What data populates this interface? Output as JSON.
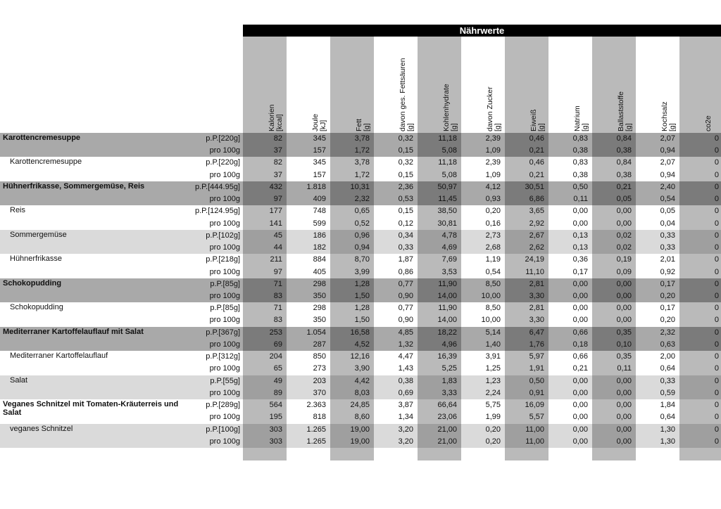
{
  "header": {
    "title": "Nährwerte"
  },
  "columns": [
    {
      "name": "Kalorien",
      "unit": "[kcal]"
    },
    {
      "name": "Joule",
      "unit": "[kJ]"
    },
    {
      "name": "Fett",
      "unit": "[g]"
    },
    {
      "name": "davon ges. Fettsäuren",
      "unit": "[g]"
    },
    {
      "name": "Kohlenhydrate",
      "unit": "[g]"
    },
    {
      "name": "davon Zucker",
      "unit": "[g]"
    },
    {
      "name": "Eiweiß",
      "unit": "[g]"
    },
    {
      "name": "Natrium",
      "unit": "[g]"
    },
    {
      "name": "Ballaststoffe",
      "unit": "[g]"
    },
    {
      "name": "Kochsalz",
      "unit": "[g]"
    },
    {
      "name": "co2e"
    }
  ],
  "items": [
    {
      "name": "Karottencremesuppe",
      "bold": true,
      "shade": "dark",
      "rows": [
        {
          "portion": "p.P.[220g]",
          "values": [
            "82",
            "345",
            "3,78",
            "0,32",
            "11,18",
            "2,39",
            "0,46",
            "0,83",
            "0,84",
            "2,07",
            "0"
          ]
        },
        {
          "portion": "pro 100g",
          "values": [
            "37",
            "157",
            "1,72",
            "0,15",
            "5,08",
            "1,09",
            "0,21",
            "0,38",
            "0,38",
            "0,94",
            "0"
          ]
        }
      ]
    },
    {
      "name": "Karottencremesuppe",
      "bold": false,
      "shade": "white",
      "rows": [
        {
          "portion": "p.P.[220g]",
          "values": [
            "82",
            "345",
            "3,78",
            "0,32",
            "11,18",
            "2,39",
            "0,46",
            "0,83",
            "0,84",
            "2,07",
            "0"
          ]
        },
        {
          "portion": "pro 100g",
          "values": [
            "37",
            "157",
            "1,72",
            "0,15",
            "5,08",
            "1,09",
            "0,21",
            "0,38",
            "0,38",
            "0,94",
            "0"
          ]
        }
      ]
    },
    {
      "name": "Hühnerfrikasse, Sommergemüse, Reis",
      "bold": true,
      "shade": "dark",
      "rows": [
        {
          "portion": "p.P.[444.95g]",
          "values": [
            "432",
            "1.818",
            "10,31",
            "2,36",
            "50,97",
            "4,12",
            "30,51",
            "0,50",
            "0,21",
            "2,40",
            "0"
          ]
        },
        {
          "portion": "pro 100g",
          "values": [
            "97",
            "409",
            "2,32",
            "0,53",
            "11,45",
            "0,93",
            "6,86",
            "0,11",
            "0,05",
            "0,54",
            "0"
          ]
        }
      ]
    },
    {
      "name": "Reis",
      "bold": false,
      "shade": "white",
      "rows": [
        {
          "portion": "p.P.[124.95g]",
          "values": [
            "177",
            "748",
            "0,65",
            "0,15",
            "38,50",
            "0,20",
            "3,65",
            "0,00",
            "0,00",
            "0,05",
            "0"
          ]
        },
        {
          "portion": "pro 100g",
          "values": [
            "141",
            "599",
            "0,52",
            "0,12",
            "30,81",
            "0,16",
            "2,92",
            "0,00",
            "0,00",
            "0,04",
            "0"
          ]
        }
      ]
    },
    {
      "name": "Sommergemüse",
      "bold": false,
      "shade": "light",
      "rows": [
        {
          "portion": "p.P.[102g]",
          "values": [
            "45",
            "186",
            "0,96",
            "0,34",
            "4,78",
            "2,73",
            "2,67",
            "0,13",
            "0,02",
            "0,33",
            "0"
          ]
        },
        {
          "portion": "pro 100g",
          "values": [
            "44",
            "182",
            "0,94",
            "0,33",
            "4,69",
            "2,68",
            "2,62",
            "0,13",
            "0,02",
            "0,33",
            "0"
          ]
        }
      ]
    },
    {
      "name": "Hühnerfrikasse",
      "bold": false,
      "shade": "white",
      "rows": [
        {
          "portion": "p.P.[218g]",
          "values": [
            "211",
            "884",
            "8,70",
            "1,87",
            "7,69",
            "1,19",
            "24,19",
            "0,36",
            "0,19",
            "2,01",
            "0"
          ]
        },
        {
          "portion": "pro 100g",
          "values": [
            "97",
            "405",
            "3,99",
            "0,86",
            "3,53",
            "0,54",
            "11,10",
            "0,17",
            "0,09",
            "0,92",
            "0"
          ]
        }
      ]
    },
    {
      "name": "Schokopudding",
      "bold": true,
      "shade": "dark",
      "rows": [
        {
          "portion": "p.P.[85g]",
          "values": [
            "71",
            "298",
            "1,28",
            "0,77",
            "11,90",
            "8,50",
            "2,81",
            "0,00",
            "0,00",
            "0,17",
            "0"
          ]
        },
        {
          "portion": "pro 100g",
          "values": [
            "83",
            "350",
            "1,50",
            "0,90",
            "14,00",
            "10,00",
            "3,30",
            "0,00",
            "0,00",
            "0,20",
            "0"
          ]
        }
      ]
    },
    {
      "name": "Schokopudding",
      "bold": false,
      "shade": "white",
      "rows": [
        {
          "portion": "p.P.[85g]",
          "values": [
            "71",
            "298",
            "1,28",
            "0,77",
            "11,90",
            "8,50",
            "2,81",
            "0,00",
            "0,00",
            "0,17",
            "0"
          ]
        },
        {
          "portion": "pro 100g",
          "values": [
            "83",
            "350",
            "1,50",
            "0,90",
            "14,00",
            "10,00",
            "3,30",
            "0,00",
            "0,00",
            "0,20",
            "0"
          ]
        }
      ]
    },
    {
      "name": "Mediterraner Kartoffelauflauf mit Salat",
      "bold": true,
      "shade": "dark",
      "rows": [
        {
          "portion": "p.P.[367g]",
          "values": [
            "253",
            "1.054",
            "16,58",
            "4,85",
            "18,22",
            "5,14",
            "6,47",
            "0,66",
            "0,35",
            "2,32",
            "0"
          ]
        },
        {
          "portion": "pro 100g",
          "values": [
            "69",
            "287",
            "4,52",
            "1,32",
            "4,96",
            "1,40",
            "1,76",
            "0,18",
            "0,10",
            "0,63",
            "0"
          ]
        }
      ]
    },
    {
      "name": "Mediterraner Kartoffelauflauf",
      "bold": false,
      "shade": "white",
      "rows": [
        {
          "portion": "p.P.[312g]",
          "values": [
            "204",
            "850",
            "12,16",
            "4,47",
            "16,39",
            "3,91",
            "5,97",
            "0,66",
            "0,35",
            "2,00",
            "0"
          ]
        },
        {
          "portion": "pro 100g",
          "values": [
            "65",
            "273",
            "3,90",
            "1,43",
            "5,25",
            "1,25",
            "1,91",
            "0,21",
            "0,11",
            "0,64",
            "0"
          ]
        }
      ]
    },
    {
      "name": "Salat",
      "bold": false,
      "shade": "light",
      "rows": [
        {
          "portion": "p.P.[55g]",
          "values": [
            "49",
            "203",
            "4,42",
            "0,38",
            "1,83",
            "1,23",
            "0,50",
            "0,00",
            "0,00",
            "0,33",
            "0"
          ]
        },
        {
          "portion": "pro 100g",
          "values": [
            "89",
            "370",
            "8,03",
            "0,69",
            "3,33",
            "2,24",
            "0,91",
            "0,00",
            "0,00",
            "0,59",
            "0"
          ]
        }
      ]
    },
    {
      "name": "Veganes Schnitzel mit Tomaten-Kräuterreis und Salat",
      "bold": true,
      "shade": "white",
      "rows": [
        {
          "portion": "p.P.[289g]",
          "values": [
            "564",
            "2.363",
            "24,85",
            "3,87",
            "66,64",
            "5,75",
            "16,09",
            "0,00",
            "0,00",
            "1,84",
            "0"
          ]
        },
        {
          "portion": "pro 100g",
          "values": [
            "195",
            "818",
            "8,60",
            "1,34",
            "23,06",
            "1,99",
            "5,57",
            "0,00",
            "0,00",
            "0,64",
            "0"
          ]
        }
      ]
    },
    {
      "name": "veganes Schnitzel",
      "bold": false,
      "shade": "light",
      "rows": [
        {
          "portion": "p.P.[100g]",
          "values": [
            "303",
            "1.265",
            "19,00",
            "3,20",
            "21,00",
            "0,20",
            "11,00",
            "0,00",
            "0,00",
            "1,30",
            "0"
          ]
        },
        {
          "portion": "pro 100g",
          "values": [
            "303",
            "1.265",
            "19,00",
            "3,20",
            "21,00",
            "0,20",
            "11,00",
            "0,00",
            "0,00",
            "1,30",
            "0"
          ]
        }
      ]
    }
  ]
}
